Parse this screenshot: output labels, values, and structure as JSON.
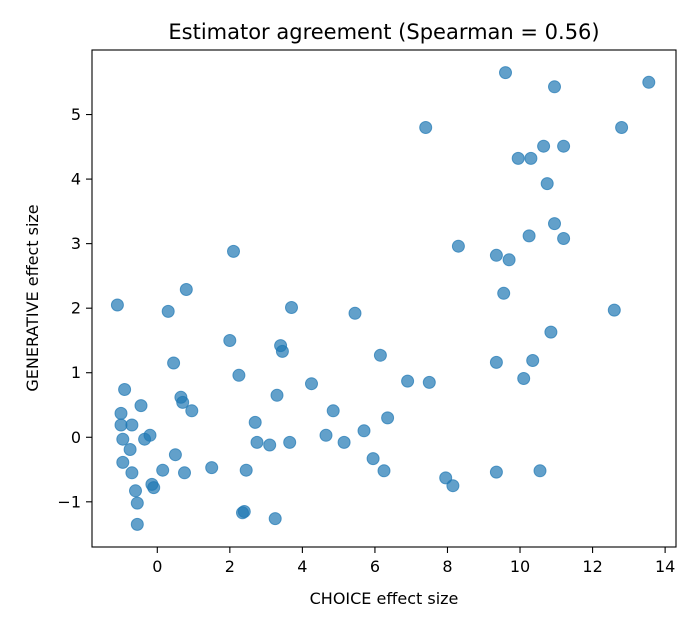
{
  "chart_data": {
    "type": "scatter",
    "title": "Estimator agreement (Spearman = 0.56)",
    "xlabel": "CHOICE effect size",
    "ylabel": "GENERATIVE effect size",
    "xlim": [
      -1.8,
      14.3
    ],
    "ylim": [
      -1.7,
      6.0
    ],
    "xticks": [
      0,
      2,
      4,
      6,
      8,
      10,
      12,
      14
    ],
    "yticks": [
      -1,
      0,
      1,
      2,
      3,
      4,
      5
    ],
    "grid": false,
    "legend": "none",
    "marker_color": "#1f77b4",
    "marker_alpha": 0.7,
    "points": [
      {
        "x": -1.1,
        "y": 2.05
      },
      {
        "x": -1.0,
        "y": 0.37
      },
      {
        "x": -1.0,
        "y": 0.19
      },
      {
        "x": -0.95,
        "y": -0.03
      },
      {
        "x": -0.95,
        "y": -0.39
      },
      {
        "x": -0.9,
        "y": 0.74
      },
      {
        "x": -0.75,
        "y": -0.19
      },
      {
        "x": -0.7,
        "y": 0.19
      },
      {
        "x": -0.7,
        "y": -0.55
      },
      {
        "x": -0.6,
        "y": -0.83
      },
      {
        "x": -0.55,
        "y": -1.02
      },
      {
        "x": -0.55,
        "y": -1.35
      },
      {
        "x": -0.45,
        "y": 0.49
      },
      {
        "x": -0.35,
        "y": -0.03
      },
      {
        "x": -0.2,
        "y": 0.03
      },
      {
        "x": -0.15,
        "y": -0.73
      },
      {
        "x": -0.1,
        "y": -0.78
      },
      {
        "x": 0.15,
        "y": -0.51
      },
      {
        "x": 0.3,
        "y": 1.95
      },
      {
        "x": 0.45,
        "y": 1.15
      },
      {
        "x": 0.5,
        "y": -0.27
      },
      {
        "x": 0.65,
        "y": 0.62
      },
      {
        "x": 0.7,
        "y": 0.54
      },
      {
        "x": 0.75,
        "y": -0.55
      },
      {
        "x": 0.8,
        "y": 2.29
      },
      {
        "x": 0.95,
        "y": 0.41
      },
      {
        "x": 1.5,
        "y": -0.47
      },
      {
        "x": 2.0,
        "y": 1.5
      },
      {
        "x": 2.1,
        "y": 2.88
      },
      {
        "x": 2.25,
        "y": 0.96
      },
      {
        "x": 2.35,
        "y": -1.17
      },
      {
        "x": 2.4,
        "y": -1.15
      },
      {
        "x": 2.45,
        "y": -0.51
      },
      {
        "x": 2.7,
        "y": 0.23
      },
      {
        "x": 2.75,
        "y": -0.08
      },
      {
        "x": 3.1,
        "y": -0.12
      },
      {
        "x": 3.25,
        "y": -1.26
      },
      {
        "x": 3.3,
        "y": 0.65
      },
      {
        "x": 3.4,
        "y": 1.42
      },
      {
        "x": 3.45,
        "y": 1.33
      },
      {
        "x": 3.65,
        "y": -0.08
      },
      {
        "x": 3.7,
        "y": 2.01
      },
      {
        "x": 4.25,
        "y": 0.83
      },
      {
        "x": 4.65,
        "y": 0.03
      },
      {
        "x": 4.85,
        "y": 0.41
      },
      {
        "x": 5.15,
        "y": -0.08
      },
      {
        "x": 5.45,
        "y": 1.92
      },
      {
        "x": 5.7,
        "y": 0.1
      },
      {
        "x": 5.95,
        "y": -0.33
      },
      {
        "x": 6.15,
        "y": 1.27
      },
      {
        "x": 6.25,
        "y": -0.52
      },
      {
        "x": 6.35,
        "y": 0.3
      },
      {
        "x": 6.9,
        "y": 0.87
      },
      {
        "x": 7.4,
        "y": 4.8
      },
      {
        "x": 7.5,
        "y": 0.85
      },
      {
        "x": 7.95,
        "y": -0.63
      },
      {
        "x": 8.15,
        "y": -0.75
      },
      {
        "x": 8.3,
        "y": 2.96
      },
      {
        "x": 9.35,
        "y": 2.82
      },
      {
        "x": 9.35,
        "y": 1.16
      },
      {
        "x": 9.35,
        "y": -0.54
      },
      {
        "x": 9.55,
        "y": 2.23
      },
      {
        "x": 9.6,
        "y": 5.65
      },
      {
        "x": 9.7,
        "y": 2.75
      },
      {
        "x": 9.95,
        "y": 4.32
      },
      {
        "x": 10.1,
        "y": 0.91
      },
      {
        "x": 10.25,
        "y": 3.12
      },
      {
        "x": 10.3,
        "y": 4.32
      },
      {
        "x": 10.35,
        "y": 1.19
      },
      {
        "x": 10.55,
        "y": -0.52
      },
      {
        "x": 10.65,
        "y": 4.51
      },
      {
        "x": 10.75,
        "y": 3.93
      },
      {
        "x": 10.85,
        "y": 1.63
      },
      {
        "x": 10.95,
        "y": 5.43
      },
      {
        "x": 10.95,
        "y": 3.31
      },
      {
        "x": 11.2,
        "y": 4.51
      },
      {
        "x": 11.2,
        "y": 3.08
      },
      {
        "x": 12.6,
        "y": 1.97
      },
      {
        "x": 12.8,
        "y": 4.8
      },
      {
        "x": 13.55,
        "y": 5.5
      }
    ]
  }
}
